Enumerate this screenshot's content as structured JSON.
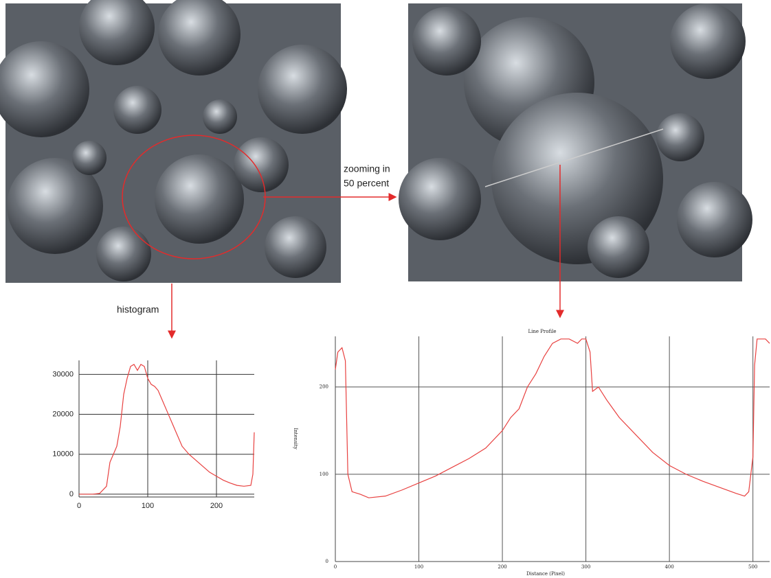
{
  "annotations": {
    "zoom_label": [
      "zooming in",
      "50 percent"
    ],
    "histogram_label": "histogram"
  },
  "chart_data": [
    {
      "type": "line",
      "color": "#e8403f",
      "grid": true,
      "x": [
        0,
        20,
        30,
        40,
        45,
        50,
        55,
        60,
        65,
        70,
        75,
        80,
        85,
        90,
        95,
        100,
        105,
        110,
        115,
        120,
        130,
        140,
        150,
        160,
        170,
        180,
        190,
        200,
        210,
        220,
        230,
        240,
        250,
        253,
        255
      ],
      "values": [
        0,
        0,
        200,
        2000,
        8000,
        10000,
        12000,
        17000,
        25000,
        29000,
        32000,
        32500,
        31000,
        32500,
        32000,
        29000,
        27500,
        27000,
        26000,
        24000,
        20000,
        16000,
        12000,
        10000,
        8500,
        7000,
        5500,
        4500,
        3500,
        2800,
        2200,
        2000,
        2200,
        5000,
        15500
      ],
      "xlim": [
        0,
        255
      ],
      "ylim": [
        -700,
        33500
      ],
      "xticks": [
        0,
        100,
        200
      ],
      "yticks": [
        0,
        10000,
        20000,
        30000
      ]
    },
    {
      "type": "line",
      "color": "#e8403f",
      "grid": true,
      "title": "Line Profile",
      "x_label": "Distance (Pixel)",
      "y_label": "Intensity",
      "x": [
        0,
        3,
        8,
        12,
        15,
        20,
        30,
        40,
        60,
        80,
        100,
        120,
        140,
        160,
        180,
        200,
        210,
        220,
        230,
        240,
        250,
        260,
        270,
        280,
        290,
        295,
        300,
        305,
        308,
        315,
        325,
        340,
        360,
        380,
        400,
        420,
        440,
        460,
        480,
        490,
        495,
        500,
        502,
        505,
        515,
        520
      ],
      "values": [
        220,
        240,
        245,
        230,
        100,
        80,
        77,
        73,
        75,
        82,
        90,
        98,
        108,
        118,
        130,
        150,
        165,
        175,
        200,
        215,
        235,
        250,
        255,
        255,
        250,
        255,
        255,
        240,
        195,
        200,
        185,
        165,
        145,
        125,
        110,
        100,
        92,
        85,
        78,
        75,
        80,
        120,
        225,
        255,
        255,
        250
      ],
      "xlim": [
        0,
        520
      ],
      "ylim": [
        0,
        258
      ],
      "xticks": [
        0,
        100,
        200,
        300,
        400,
        500
      ],
      "yticks": [
        0,
        100,
        200
      ]
    }
  ]
}
